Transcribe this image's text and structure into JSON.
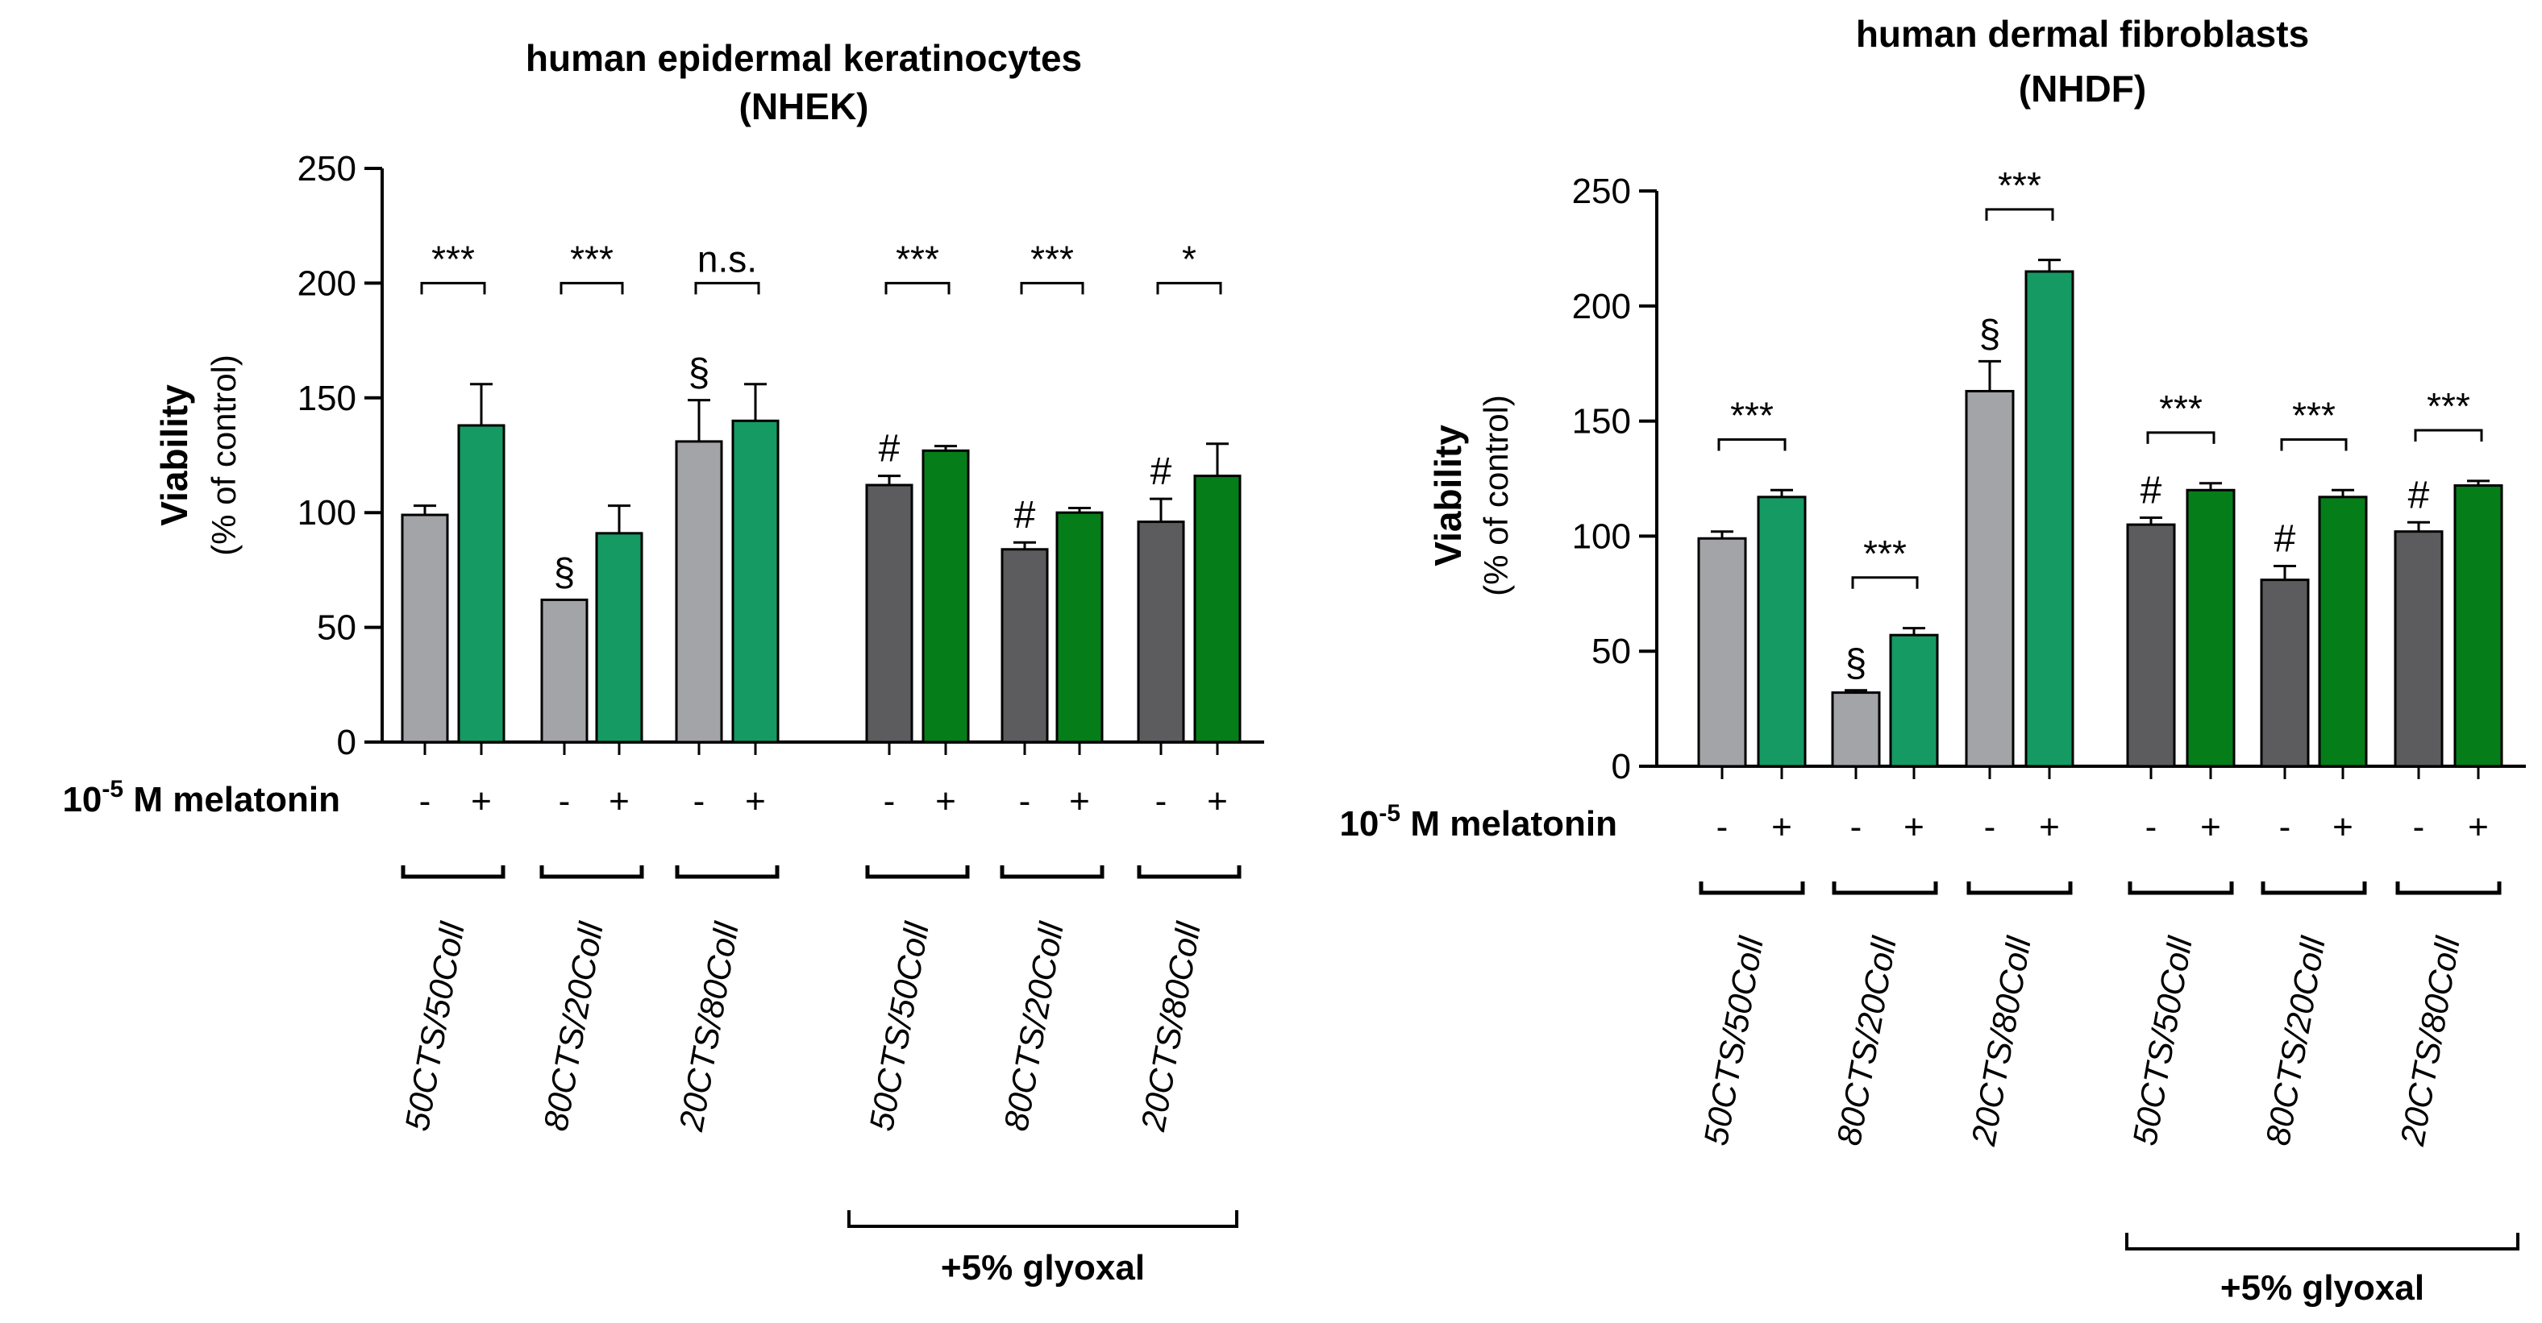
{
  "colors": {
    "no_glyoxal_minus": "#a3a4a7",
    "no_glyoxal_plus": "#159a63",
    "glyoxal_minus": "#5c5c5e",
    "glyoxal_plus": "#057d19",
    "axis": "#000000"
  },
  "melatonin_label": {
    "base": "10",
    "superscript": "-5",
    "rest": " M melatonin"
  },
  "chart_data": [
    {
      "type": "bar",
      "title": "human epidermal keratinocytes",
      "subtitle": "(NHEK)",
      "ylabel": "Viability",
      "ylabel2": "(% of control)",
      "ylim": [
        0,
        250
      ],
      "yticks": [
        0,
        50,
        100,
        150,
        200,
        250
      ],
      "yticklabels": [
        "0",
        "50",
        "100",
        "150",
        "200",
        "250"
      ],
      "melatonin_signs": [
        "-",
        "+"
      ],
      "glyoxal_label": "+5% glyoxal",
      "groups": [
        {
          "label": "50CTS/50Coll",
          "glyoxal": false,
          "values": [
            99,
            138
          ],
          "errors": [
            4,
            18
          ],
          "marker": "",
          "significance": "***"
        },
        {
          "label": "80CTS/20Coll",
          "glyoxal": false,
          "values": [
            62,
            91
          ],
          "errors": [
            0,
            12
          ],
          "marker": "§",
          "significance": "***"
        },
        {
          "label": "20CTS/80Coll",
          "glyoxal": false,
          "values": [
            131,
            140
          ],
          "errors": [
            18,
            16
          ],
          "marker": "§",
          "significance": "n.s."
        },
        {
          "label": "50CTS/50Coll",
          "glyoxal": true,
          "values": [
            112,
            127
          ],
          "errors": [
            4,
            2
          ],
          "marker": "#",
          "significance": "***"
        },
        {
          "label": "80CTS/20Coll",
          "glyoxal": true,
          "values": [
            84,
            100
          ],
          "errors": [
            3,
            2
          ],
          "marker": "#",
          "significance": "***"
        },
        {
          "label": "20CTS/80Coll",
          "glyoxal": true,
          "values": [
            96,
            116
          ],
          "errors": [
            10,
            14
          ],
          "marker": "#",
          "significance": "*"
        }
      ]
    },
    {
      "type": "bar",
      "title": "human dermal fibroblasts",
      "subtitle": "(NHDF)",
      "ylabel": "Viability",
      "ylabel2": "(% of control)",
      "ylim": [
        0,
        250
      ],
      "yticks": [
        0,
        50,
        100,
        150,
        200,
        250
      ],
      "yticklabels": [
        "0",
        "50",
        "100",
        "150",
        "200",
        "250"
      ],
      "melatonin_signs": [
        "-",
        "+"
      ],
      "glyoxal_label": "+5% glyoxal",
      "groups": [
        {
          "label": "50CTS/50Coll",
          "glyoxal": false,
          "values": [
            99,
            117
          ],
          "errors": [
            3,
            3
          ],
          "marker": "",
          "significance": "***"
        },
        {
          "label": "80CTS/20Coll",
          "glyoxal": false,
          "values": [
            32,
            57
          ],
          "errors": [
            1,
            3
          ],
          "marker": "§",
          "significance": "***"
        },
        {
          "label": "20CTS/80Coll",
          "glyoxal": false,
          "values": [
            163,
            215
          ],
          "errors": [
            13,
            5
          ],
          "marker": "§",
          "significance": "***"
        },
        {
          "label": "50CTS/50Coll",
          "glyoxal": true,
          "values": [
            105,
            120
          ],
          "errors": [
            3,
            3
          ],
          "marker": "#",
          "significance": "***"
        },
        {
          "label": "80CTS/20Coll",
          "glyoxal": true,
          "values": [
            81,
            117
          ],
          "errors": [
            6,
            3
          ],
          "marker": "#",
          "significance": "***"
        },
        {
          "label": "20CTS/80Coll",
          "glyoxal": true,
          "values": [
            102,
            122
          ],
          "errors": [
            4,
            2
          ],
          "marker": "#",
          "significance": "***"
        }
      ]
    }
  ]
}
